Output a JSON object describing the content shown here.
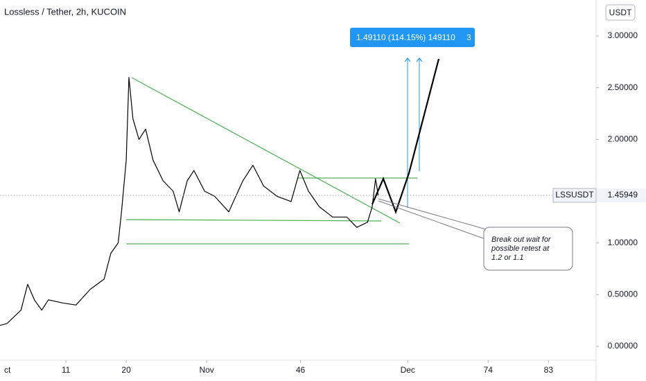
{
  "chart_data": {
    "type": "line",
    "title": "Lossless / Tether, 2h, KUCOIN",
    "currency": "USDT",
    "series": [
      {
        "name": "LSSUSDT",
        "color": "#000000",
        "x": [
          1,
          2.2,
          4.3,
          5.3,
          6.3,
          7.4,
          8.4,
          10.5,
          12.5,
          14.6,
          16.7,
          17.7,
          18.8,
          19.3,
          20,
          20.4,
          21,
          21.9,
          22.9,
          24,
          25.5,
          27,
          27.9,
          29.1,
          30.1,
          31.7,
          33.2,
          35.3,
          37.4,
          38.9,
          40.5,
          42.5,
          44.6,
          45.9,
          47.2,
          48.8,
          50.8,
          52.9,
          54.4,
          56,
          56.7,
          57.2,
          57.6
        ],
        "values": [
          0.2,
          0.22,
          0.35,
          0.6,
          0.45,
          0.35,
          0.45,
          0.42,
          0.4,
          0.55,
          0.65,
          0.9,
          1.0,
          1.3,
          1.8,
          2.6,
          2.2,
          2.0,
          2.1,
          1.8,
          1.6,
          1.5,
          1.3,
          1.6,
          1.7,
          1.5,
          1.45,
          1.3,
          1.6,
          1.75,
          1.55,
          1.45,
          1.4,
          1.7,
          1.5,
          1.35,
          1.25,
          1.25,
          1.15,
          1.2,
          1.35,
          1.62,
          1.46
        ]
      }
    ],
    "last_price": 1.45949,
    "xlim": [
      1.17,
      90.1
    ],
    "xticks": [
      {
        "value": 1,
        "label": "ct"
      },
      11,
      20,
      {
        "value": 32,
        "label": "Nov"
      },
      46,
      {
        "value": 62,
        "label": "Dec"
      },
      74,
      83
    ],
    "ylim": [
      -0.134,
      3.348
    ],
    "yticks": [
      {
        "value": 0,
        "label": "0.00000"
      },
      {
        "value": 0.5,
        "label": "0.50000"
      },
      {
        "value": 1,
        "label": "1.00000"
      },
      {
        "value": 2,
        "label": "2.00000"
      },
      {
        "value": 2.5,
        "label": "2.50000"
      },
      {
        "value": 3,
        "label": "3.00000"
      }
    ],
    "grid": false,
    "annotations": {
      "measure": "1.49110 (114.15%) 149110",
      "measure_tail": "3",
      "note": [
        "Break out wait for",
        "possible retest at",
        "1.2 or 1.1"
      ]
    }
  }
}
